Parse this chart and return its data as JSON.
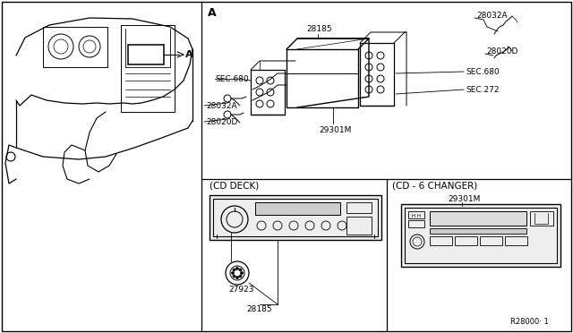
{
  "bg_color": "#ffffff",
  "line_color": "#000000",
  "fig_width": 6.4,
  "fig_height": 3.72,
  "dpi": 100,
  "footer_text": "R28000· 1",
  "section_A_label": "A",
  "labels": {
    "28185_top": "28185",
    "28032A_top": "28032A",
    "28020D_right": "28020D",
    "SEC680_right": "SEC.680",
    "SEC272_right": "SEC.272",
    "SEC680_left": "SEC.680",
    "28032A_left": "28032A",
    "28020D_left": "28020D",
    "29301M_main": "29301M",
    "CD_DECK": "(CD DECK)",
    "label_27923": "27923",
    "28185_bottom": "28185",
    "CD6_CHANGER": "(CD - 6 CHANGER)",
    "29301M_bottom": "29301M"
  },
  "fs_small": 6.5,
  "fs_label": 7.5
}
